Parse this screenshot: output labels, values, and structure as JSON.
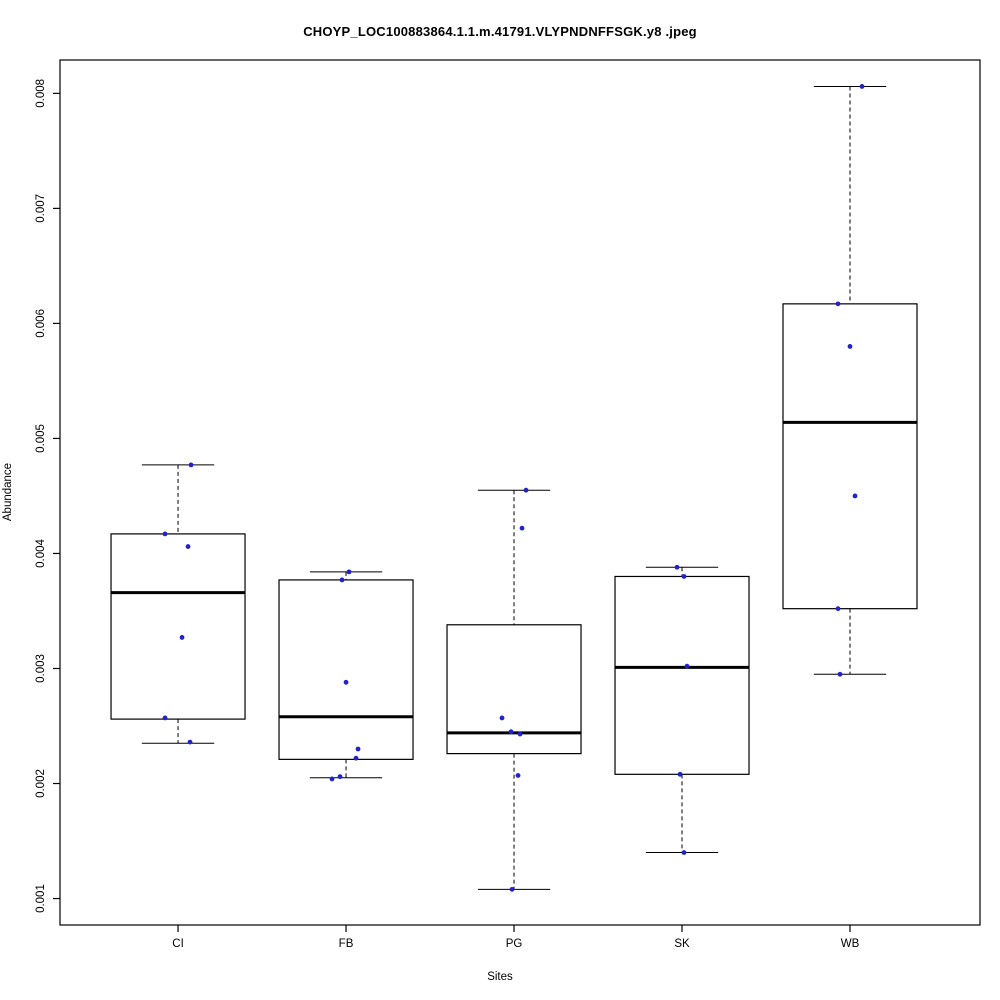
{
  "chart_data": {
    "type": "boxplot",
    "title": "CHOYP_LOC100883864.1.1.m.41791.VLYPNDNFFSGK.y8 .jpeg",
    "xlabel": "Sites",
    "ylabel": "Abundance",
    "ylim": [
      0.00077,
      0.00829
    ],
    "ytick_values": [
      0.001,
      0.002,
      0.003,
      0.004,
      0.005,
      0.006,
      0.007,
      0.008
    ],
    "ytick_labels": [
      "0.001",
      "0.002",
      "0.003",
      "0.004",
      "0.005",
      "0.006",
      "0.007",
      "0.008"
    ],
    "categories": [
      "CI",
      "FB",
      "PG",
      "SK",
      "WB"
    ],
    "grid": false,
    "legend": "none",
    "point_color": "#2222cc",
    "box_stroke": "#000000",
    "background": "#ffffff",
    "boxes": [
      {
        "site": "CI",
        "whisker_low": 0.00235,
        "q1": 0.00256,
        "median": 0.00366,
        "q3": 0.00417,
        "whisker_high": 0.00477,
        "points": [
          {
            "v": 0.00477,
            "j": 13
          },
          {
            "v": 0.00417,
            "j": -13
          },
          {
            "v": 0.00406,
            "j": 10
          },
          {
            "v": 0.00327,
            "j": 4
          },
          {
            "v": 0.00257,
            "j": -13
          },
          {
            "v": 0.00236,
            "j": 12
          }
        ]
      },
      {
        "site": "FB",
        "whisker_low": 0.00205,
        "q1": 0.00221,
        "median": 0.00258,
        "q3": 0.00377,
        "whisker_high": 0.00384,
        "points": [
          {
            "v": 0.00384,
            "j": 3
          },
          {
            "v": 0.00377,
            "j": -4
          },
          {
            "v": 0.00288,
            "j": 0
          },
          {
            "v": 0.0023,
            "j": 12
          },
          {
            "v": 0.00222,
            "j": 10
          },
          {
            "v": 0.00206,
            "j": -6
          },
          {
            "v": 0.00204,
            "j": -14
          }
        ]
      },
      {
        "site": "PG",
        "whisker_low": 0.00108,
        "q1": 0.00226,
        "median": 0.00244,
        "q3": 0.00338,
        "whisker_high": 0.00455,
        "points": [
          {
            "v": 0.00455,
            "j": 12
          },
          {
            "v": 0.00422,
            "j": 8
          },
          {
            "v": 0.00257,
            "j": -12
          },
          {
            "v": 0.00245,
            "j": -3
          },
          {
            "v": 0.00243,
            "j": 6
          },
          {
            "v": 0.00207,
            "j": 4
          },
          {
            "v": 0.00108,
            "j": -2
          }
        ]
      },
      {
        "site": "SK",
        "whisker_low": 0.0014,
        "q1": 0.00208,
        "median": 0.00301,
        "q3": 0.0038,
        "whisker_high": 0.00388,
        "points": [
          {
            "v": 0.00388,
            "j": -5
          },
          {
            "v": 0.0038,
            "j": 2
          },
          {
            "v": 0.00302,
            "j": 5
          },
          {
            "v": 0.00208,
            "j": -2
          },
          {
            "v": 0.0014,
            "j": 2
          }
        ]
      },
      {
        "site": "WB",
        "whisker_low": 0.00295,
        "q1": 0.00352,
        "median": 0.00514,
        "q3": 0.00617,
        "whisker_high": 0.00806,
        "points": [
          {
            "v": 0.00806,
            "j": 12
          },
          {
            "v": 0.00617,
            "j": -12
          },
          {
            "v": 0.0058,
            "j": 0
          },
          {
            "v": 0.0045,
            "j": 5
          },
          {
            "v": 0.00352,
            "j": -12
          },
          {
            "v": 0.00295,
            "j": -10
          }
        ]
      }
    ]
  }
}
